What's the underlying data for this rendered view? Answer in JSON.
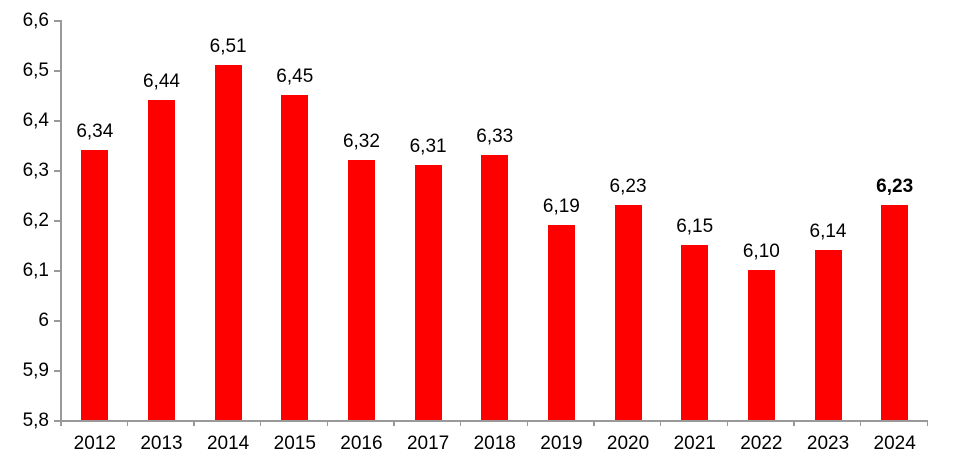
{
  "chart_data": {
    "type": "bar",
    "title": "",
    "xlabel": "",
    "ylabel": "",
    "categories": [
      "2012",
      "2013",
      "2014",
      "2015",
      "2016",
      "2017",
      "2018",
      "2019",
      "2020",
      "2021",
      "2022",
      "2023",
      "2024"
    ],
    "values": [
      6.34,
      6.44,
      6.51,
      6.45,
      6.32,
      6.31,
      6.33,
      6.19,
      6.23,
      6.15,
      6.1,
      6.14,
      6.23
    ],
    "value_labels": [
      "6,34",
      "6,44",
      "6,51",
      "6,45",
      "6,32",
      "6,31",
      "6,33",
      "6,19",
      "6,23",
      "6,15",
      "6,10",
      "6,14",
      "6,23"
    ],
    "bold_label_indices": [
      12
    ],
    "y_ticks": [
      {
        "value": 6.6,
        "label": "6,6"
      },
      {
        "value": 6.5,
        "label": "6,5"
      },
      {
        "value": 6.4,
        "label": "6,4"
      },
      {
        "value": 6.3,
        "label": "6,3"
      },
      {
        "value": 6.2,
        "label": "6,2"
      },
      {
        "value": 6.1,
        "label": "6,1"
      },
      {
        "value": 6.0,
        "label": "6"
      },
      {
        "value": 5.9,
        "label": "5,9"
      },
      {
        "value": 5.8,
        "label": "5,8"
      }
    ],
    "ylim": [
      5.8,
      6.6
    ],
    "grid": false,
    "legend_position": "none",
    "decimal_separator": ",",
    "colors": {
      "bar": "#FF0000",
      "axis": "#999999",
      "text": "#000000",
      "background": "#FFFFFF"
    }
  }
}
